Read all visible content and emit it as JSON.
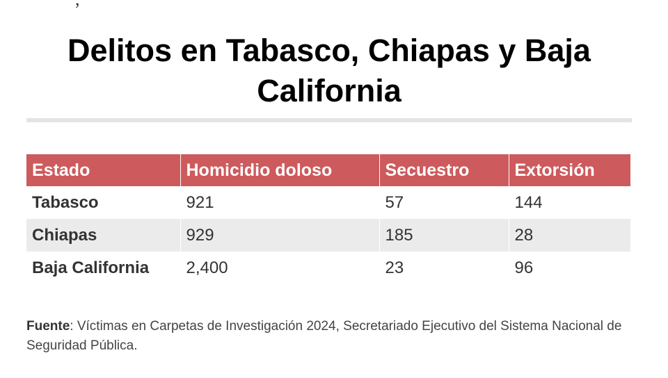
{
  "top_fragment": ", ",
  "title": "Delitos en Tabasco, Chiapas y Baja California",
  "table": {
    "headers": [
      "Estado",
      "Homicidio doloso",
      "Secuestro",
      "Extorsión"
    ],
    "rows": [
      [
        "Tabasco",
        "921",
        "57",
        "144"
      ],
      [
        "Chiapas",
        "929",
        "185",
        "28"
      ],
      [
        "Baja California",
        "2,400",
        "23",
        "96"
      ]
    ]
  },
  "source": {
    "label": "Fuente",
    "text": ": Víctimas en Carpetas de Investigación 2024, Secretariado Ejecutivo del Sistema Nacional de Seguridad Pública."
  },
  "colors": {
    "header_background": "#cd5a5c",
    "header_text": "#ffffff",
    "shaded_row": "#ebebeb",
    "divider": "#e4e4e4"
  }
}
